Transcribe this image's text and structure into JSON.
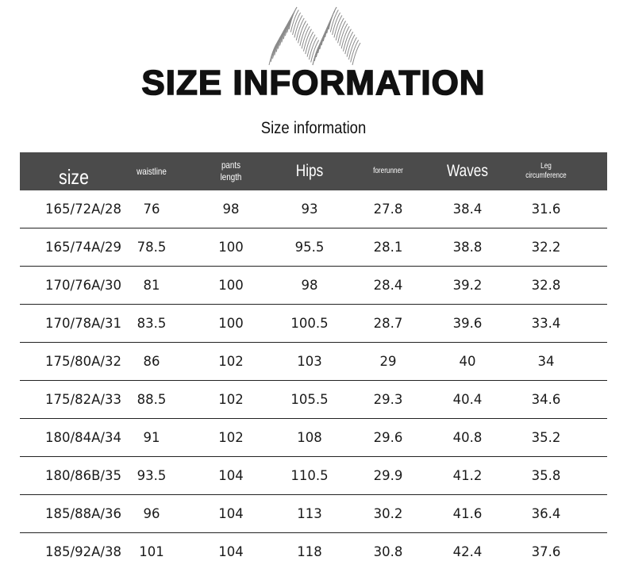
{
  "logo": {
    "text": "M",
    "color": "#888888"
  },
  "title": "SIZE INFORMATION",
  "subtitle": "Size information",
  "header_color": "#4b4b4b",
  "columns": [
    "size",
    "waistline",
    "pants length",
    "Hips",
    "forerunner",
    "Waves",
    "Leg circumference"
  ],
  "column_lines": {
    "pants": [
      "pants",
      "length"
    ],
    "leg": [
      "Leg",
      "circumference"
    ]
  },
  "rows": [
    [
      "165/72A/28",
      "76",
      "98",
      "93",
      "27.8",
      "38.4",
      "31.6"
    ],
    [
      "165/74A/29",
      "78.5",
      "100",
      "95.5",
      "28.1",
      "38.8",
      "32.2"
    ],
    [
      "170/76A/30",
      "81",
      "100",
      "98",
      "28.4",
      "39.2",
      "32.8"
    ],
    [
      "170/78A/31",
      "83.5",
      "100",
      "100.5",
      "28.7",
      "39.6",
      "33.4"
    ],
    [
      "175/80A/32",
      "86",
      "102",
      "103",
      "29",
      "40",
      "34"
    ],
    [
      "175/82A/33",
      "88.5",
      "102",
      "105.5",
      "29.3",
      "40.4",
      "34.6"
    ],
    [
      "180/84A/34",
      "91",
      "102",
      "108",
      "29.6",
      "40.8",
      "35.2"
    ],
    [
      "180/86B/35",
      "93.5",
      "104",
      "110.5",
      "29.9",
      "41.2",
      "35.8"
    ],
    [
      "185/88A/36",
      "96",
      "104",
      "113",
      "30.2",
      "41.6",
      "36.4"
    ],
    [
      "185/92A/38",
      "101",
      "104",
      "118",
      "30.8",
      "42.4",
      "37.6"
    ]
  ]
}
